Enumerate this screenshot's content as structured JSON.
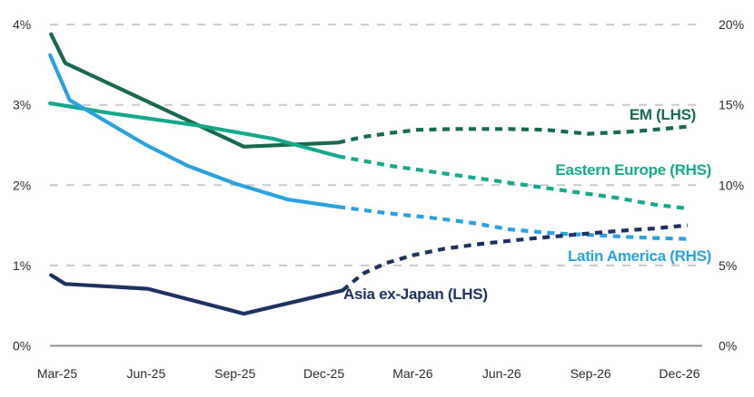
{
  "chart_data": {
    "type": "line",
    "title": "",
    "x_categories": [
      "Mar-25",
      "Jun-25",
      "Sep-25",
      "Dec-25",
      "Mar-26",
      "Jun-26",
      "Sep-26",
      "Dec-26"
    ],
    "left_axis": {
      "side": "LHS",
      "tick_labels": [
        "0%",
        "1%",
        "2%",
        "3%",
        "4%"
      ],
      "tick_values": [
        0,
        1,
        2,
        3,
        4
      ],
      "min": 0,
      "max": 4
    },
    "right_axis": {
      "side": "RHS",
      "tick_labels": [
        "0%",
        "5%",
        "10%",
        "15%",
        "20%"
      ],
      "tick_values": [
        0,
        5,
        10,
        15,
        20
      ],
      "min": 0,
      "max": 20
    },
    "grid": "dashed horizontal gridlines at each tick, solid zero baseline",
    "legend_position": "labels placed next to line ends (right side / below line)",
    "style_note": "solid lines = history through Dec-25, dotted lines = forecast after Dec-25",
    "colors": {
      "em": "#176A4D",
      "eastern_europe": "#15A88A",
      "latin_america": "#2BA2DF",
      "asia_ex_japan": "#1E3160",
      "gridline": "#C9C9C9",
      "axis_line": "#8C8C8C",
      "tick_text": "#2B2B2B"
    },
    "series": [
      {
        "name": "EM (LHS)",
        "axis": "LHS",
        "color": "#176A4D",
        "quarterly_values_pct": [
          3.9,
          3.05,
          2.5,
          2.55,
          2.7,
          2.7,
          2.65,
          2.7
        ],
        "solid_points": [
          [
            -0.07,
            3.88
          ],
          [
            0.09,
            3.52
          ],
          [
            2.1,
            2.48
          ],
          [
            3.16,
            2.53
          ]
        ],
        "forecast_points": [
          [
            3.16,
            2.53
          ],
          [
            3.44,
            2.6
          ],
          [
            3.75,
            2.65
          ],
          [
            4.06,
            2.69
          ],
          [
            4.47,
            2.7
          ],
          [
            5.08,
            2.7
          ],
          [
            5.49,
            2.69
          ],
          [
            5.97,
            2.64
          ],
          [
            6.51,
            2.67
          ],
          [
            7.1,
            2.73
          ]
        ]
      },
      {
        "name": "Eastern Europe (RHS)",
        "axis": "RHS",
        "color": "#15A88A",
        "quarterly_values_pct": [
          15.1,
          14.2,
          13.3,
          12.0,
          11.0,
          10.2,
          9.4,
          8.6
        ],
        "solid_points": [
          [
            -0.08,
            15.1
          ],
          [
            0.58,
            14.5
          ],
          [
            1.6,
            13.7
          ],
          [
            2.42,
            12.9
          ],
          [
            3.16,
            11.8
          ]
        ],
        "forecast_points": [
          [
            3.16,
            11.8
          ],
          [
            3.75,
            11.2
          ],
          [
            4.26,
            10.8
          ],
          [
            4.77,
            10.4
          ],
          [
            5.28,
            10.0
          ],
          [
            5.79,
            9.6
          ],
          [
            6.31,
            9.2
          ],
          [
            6.71,
            8.8
          ],
          [
            7.09,
            8.55
          ]
        ]
      },
      {
        "name": "Latin America (RHS)",
        "axis": "RHS",
        "color": "#2BA2DF",
        "quarterly_values_pct": [
          18.1,
          12.5,
          10.1,
          8.8,
          8.0,
          7.3,
          6.9,
          6.7
        ],
        "solid_points": [
          [
            -0.08,
            18.1
          ],
          [
            0.14,
            15.3
          ],
          [
            1.0,
            12.5
          ],
          [
            1.47,
            11.2
          ],
          [
            2.0,
            10.1
          ],
          [
            2.6,
            9.1
          ],
          [
            3.16,
            8.65
          ]
        ],
        "forecast_points": [
          [
            3.16,
            8.65
          ],
          [
            3.72,
            8.25
          ],
          [
            4.16,
            8.0
          ],
          [
            4.67,
            7.65
          ],
          [
            5.08,
            7.25
          ],
          [
            5.61,
            7.0
          ],
          [
            6.01,
            6.9
          ],
          [
            6.51,
            6.75
          ],
          [
            7.09,
            6.65
          ]
        ]
      },
      {
        "name": "Asia ex-Japan (LHS)",
        "axis": "LHS",
        "color": "#1E3160",
        "quarterly_values_pct": [
          0.9,
          0.7,
          0.45,
          0.65,
          1.1,
          1.3,
          1.4,
          1.5
        ],
        "solid_points": [
          [
            -0.07,
            0.88
          ],
          [
            0.09,
            0.77
          ],
          [
            1.02,
            0.71
          ],
          [
            2.1,
            0.4
          ],
          [
            3.21,
            0.69
          ]
        ],
        "forecast_points": [
          [
            3.21,
            0.69
          ],
          [
            3.44,
            0.9
          ],
          [
            3.7,
            1.03
          ],
          [
            4.01,
            1.13
          ],
          [
            4.36,
            1.21
          ],
          [
            4.77,
            1.27
          ],
          [
            5.28,
            1.33
          ],
          [
            5.79,
            1.38
          ],
          [
            6.31,
            1.43
          ],
          [
            6.71,
            1.46
          ],
          [
            7.09,
            1.5
          ]
        ]
      }
    ]
  }
}
